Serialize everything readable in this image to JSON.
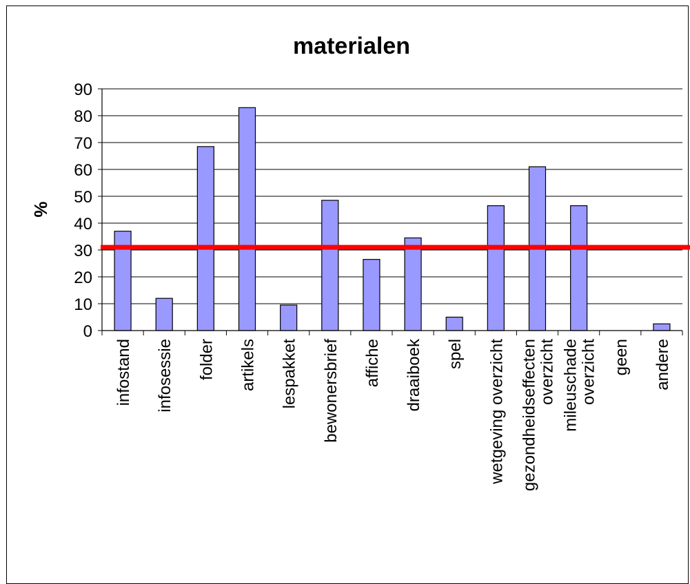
{
  "chart_data": {
    "type": "bar",
    "title": "materialen",
    "ylabel": "%",
    "xlabel": "",
    "ylim": [
      0,
      90
    ],
    "yticks": [
      0,
      10,
      20,
      30,
      40,
      50,
      60,
      70,
      80,
      90
    ],
    "grid": true,
    "legend": "none",
    "categories": [
      [
        "infostand"
      ],
      [
        "infosessie"
      ],
      [
        "folder"
      ],
      [
        "artikels"
      ],
      [
        "lespakket"
      ],
      [
        "bewonersbrief"
      ],
      [
        "affiche"
      ],
      [
        "draaiboek"
      ],
      [
        "spel"
      ],
      [
        "wetgeving overzicht"
      ],
      [
        "gezondheidseffecten",
        "overzicht"
      ],
      [
        "mileuschade",
        "overzicht"
      ],
      [
        "geen"
      ],
      [
        "andere"
      ]
    ],
    "values": [
      37,
      12,
      68.5,
      83,
      9.5,
      48.5,
      26.5,
      34.5,
      5,
      46.5,
      61,
      46.5,
      0,
      2.5
    ],
    "reference_line": {
      "value": 31,
      "color": "#ff0000"
    },
    "bar_color": "#9999ff",
    "bar_edge_color": "#000000"
  }
}
